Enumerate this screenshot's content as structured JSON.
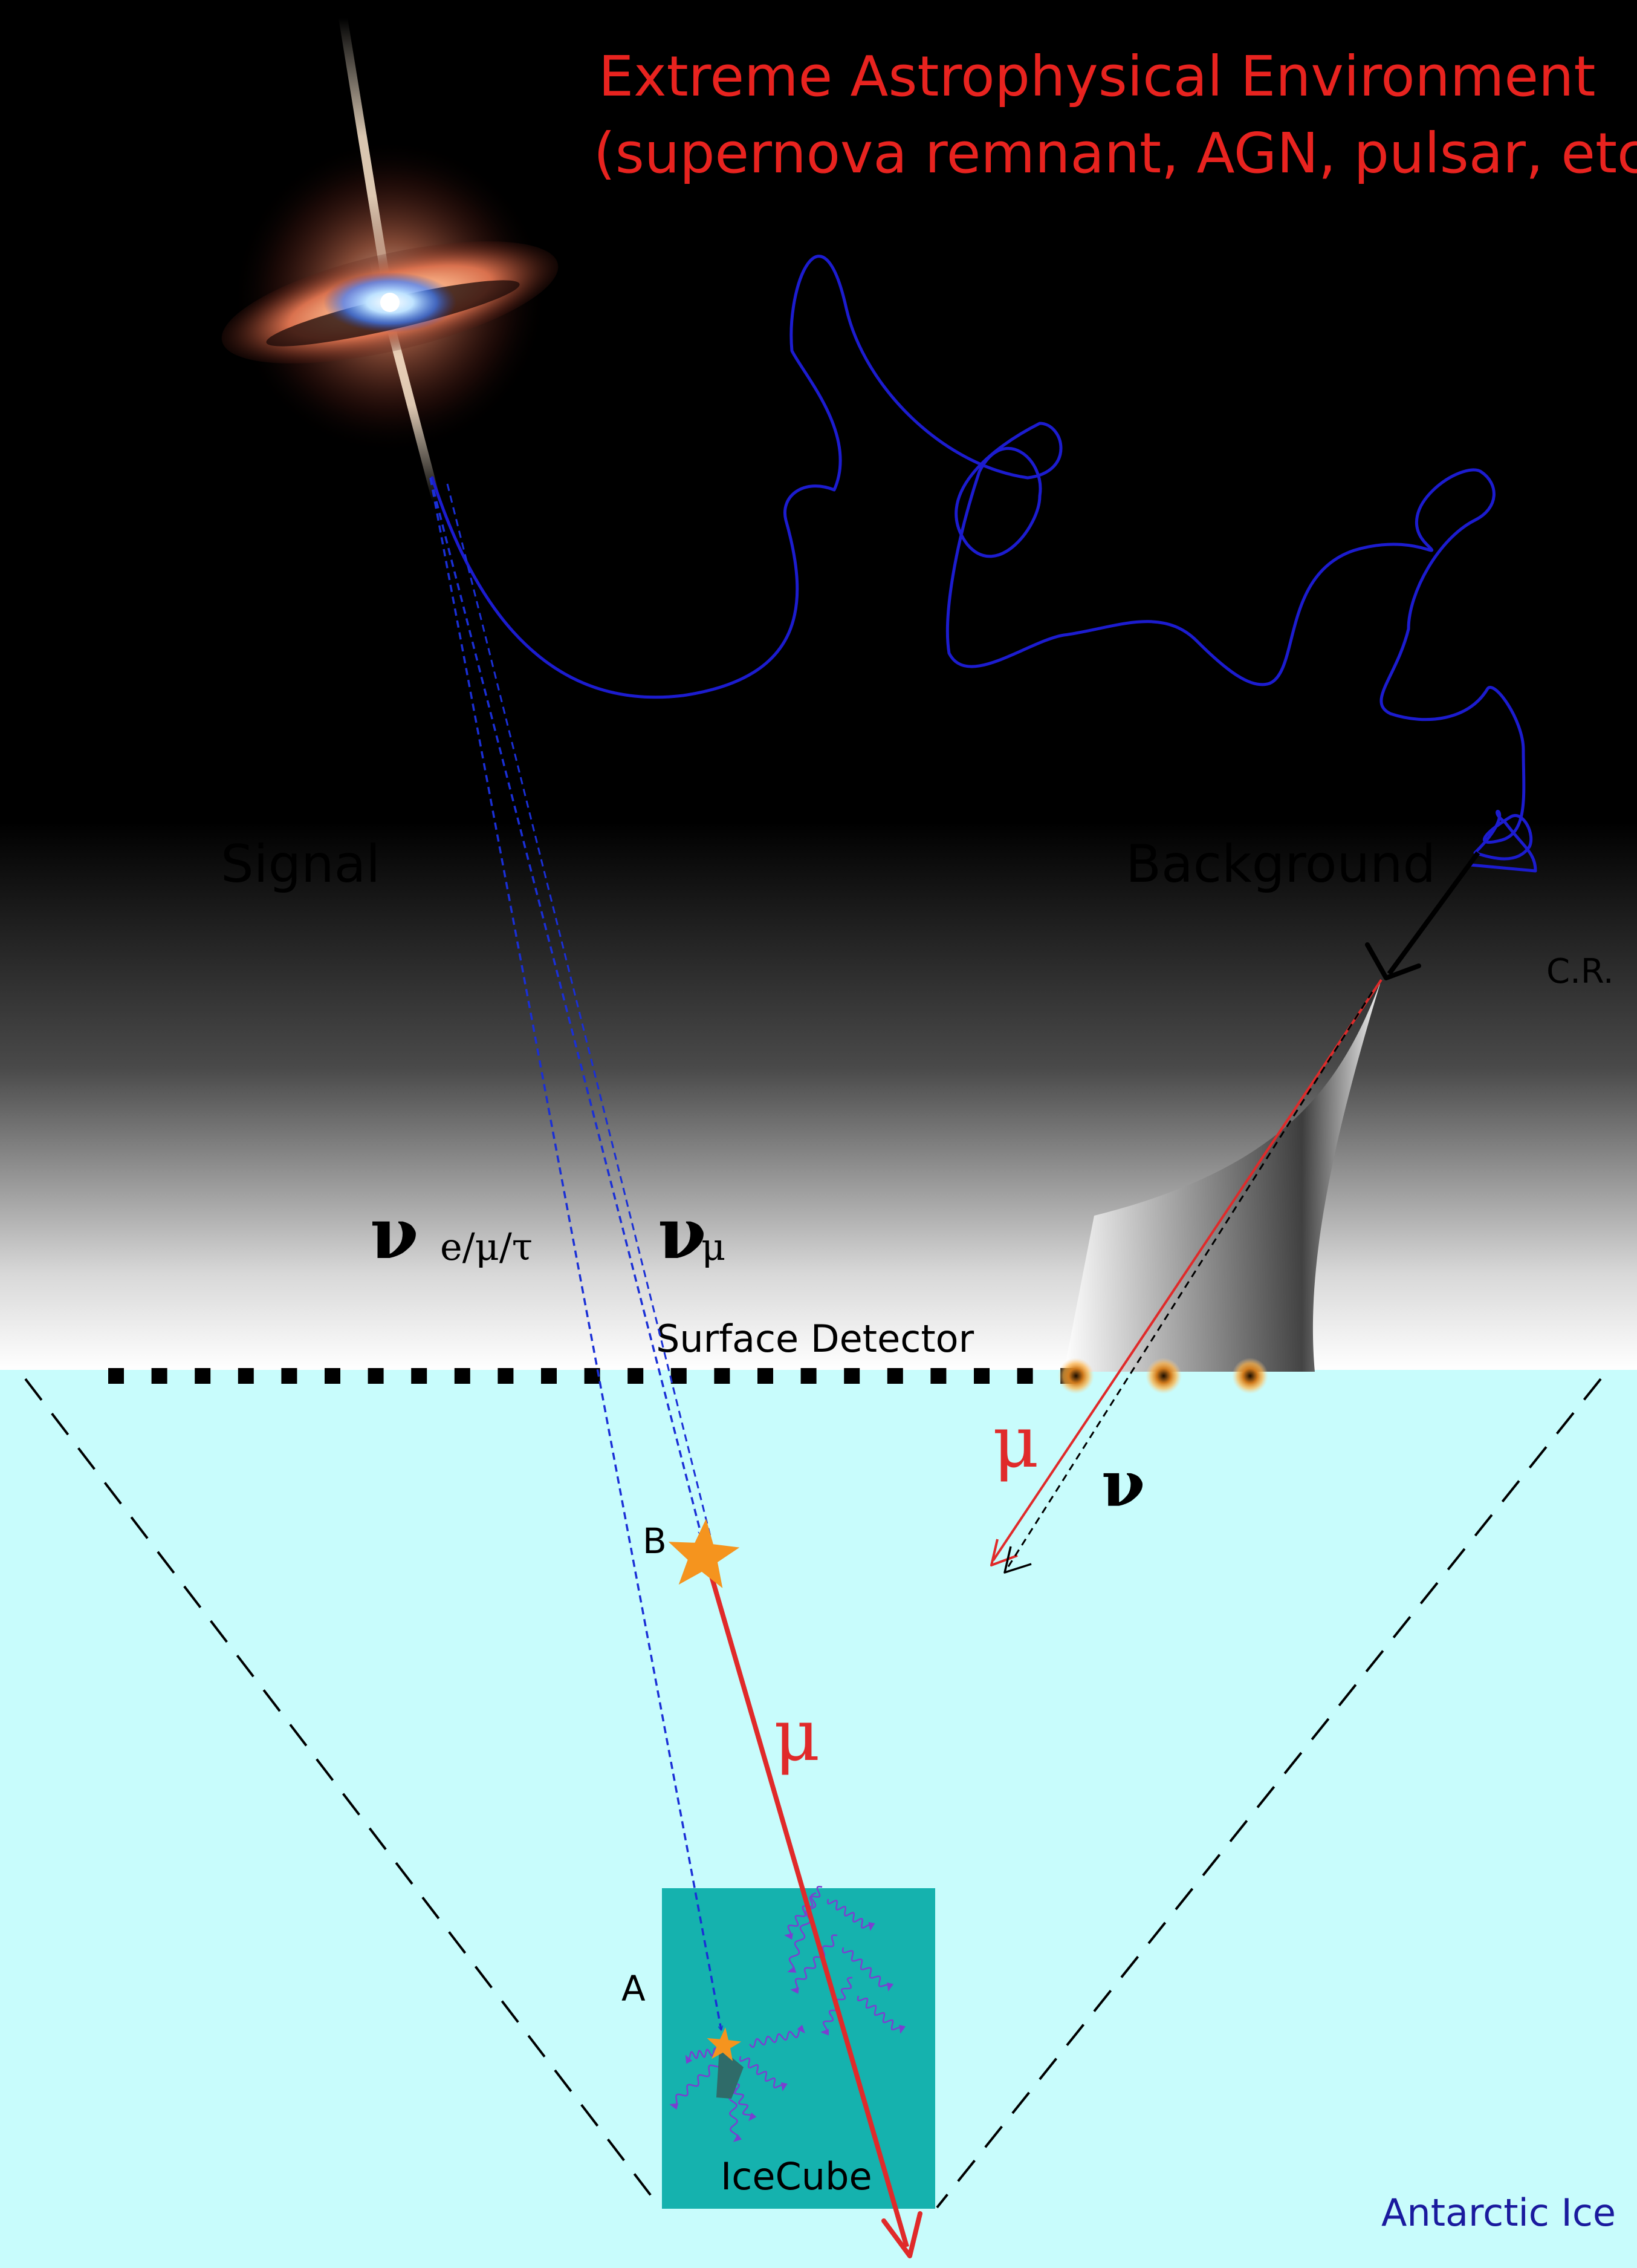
{
  "title": {
    "line1": "Extreme Astrophysical Environment",
    "line2": "(supernova remnant, AGN, pulsar, etc.)"
  },
  "labels": {
    "signal": "Signal",
    "background": "Background",
    "cr": "C.R.",
    "surface_detector": "Surface Detector",
    "point_a": "A",
    "point_b": "B",
    "icecube": "IceCube",
    "antarctic_ice": "Antarctic Ice"
  },
  "symbols": {
    "nu": "ν",
    "nu_all_sub": "e/μ/τ",
    "nu_mu_sub": "μ",
    "mu": "μ"
  },
  "colors": {
    "title": "#e8231f",
    "ice": "#c8fcfc",
    "icecube_block": "#15b2ae",
    "neutrino_path": "#1a2fd6",
    "muon": "#e02a2a",
    "star": "#f5941e",
    "cosmic_ray_path": "#1c1ccf",
    "antarctic_label": "#1a1a9e"
  },
  "icons": {
    "source": "accretion-disk-jet-icon",
    "interaction": "star-icon"
  }
}
